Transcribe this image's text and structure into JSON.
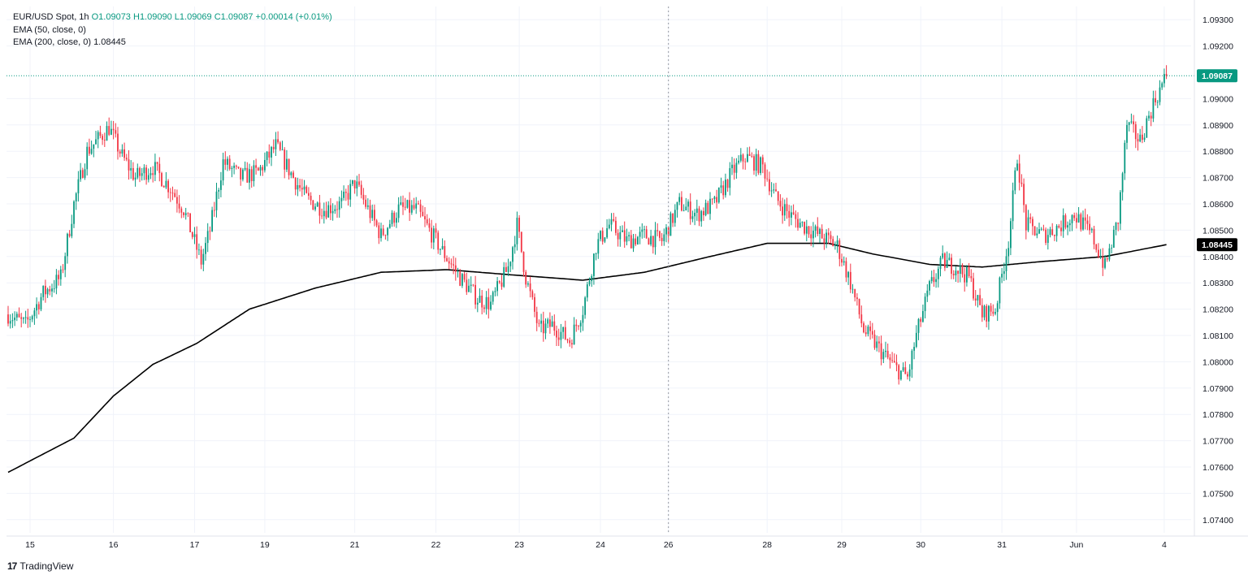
{
  "legend": {
    "symbol": "EUR/USD Spot, 1h",
    "o": "O1.09073",
    "h": "H1.09090",
    "l": "L1.09069",
    "c": "C1.09087",
    "chg": "+0.00014 (+0.01%)",
    "ema50": "EMA (50, close, 0)",
    "ema200": "EMA (200, close, 0)",
    "ema200_value": "1.08445"
  },
  "brand": {
    "logo_icon": "tradingview-logo-icon",
    "name": "TradingView"
  },
  "colors": {
    "up": "#089981",
    "down": "#f23645",
    "ema": "#000000",
    "grid": "#f0f3fa",
    "axis_text": "#131722"
  },
  "chart_data": {
    "type": "candlestick",
    "title": "",
    "ylim": [
      1.0735,
      1.0935
    ],
    "grid": true,
    "yticks": [
      "1.09300",
      "1.09200",
      "1.09000",
      "1.08900",
      "1.08800",
      "1.08700",
      "1.08600",
      "1.08500",
      "1.08400",
      "1.08300",
      "1.08200",
      "1.08100",
      "1.08000",
      "1.07900",
      "1.07800",
      "1.07700",
      "1.07600",
      "1.07500",
      "1.07400"
    ],
    "xticks": [
      "15",
      "16",
      "17",
      "19",
      "21",
      "22",
      "23",
      "24",
      "26",
      "28",
      "29",
      "30",
      "31",
      "Jun",
      "4"
    ],
    "last_price": 1.09087,
    "last_price_label": "1.09087",
    "ema200_label": "1.08445",
    "vertical_marker_at": "26",
    "price_path": [
      [
        0,
        1.0818
      ],
      [
        8,
        1.0814
      ],
      [
        16,
        1.0826
      ],
      [
        24,
        1.0832
      ],
      [
        30,
        1.086
      ],
      [
        36,
        1.088
      ],
      [
        46,
        1.0889
      ],
      [
        52,
        1.0878
      ],
      [
        58,
        1.087
      ],
      [
        66,
        1.0874
      ],
      [
        74,
        1.0866
      ],
      [
        80,
        1.0858
      ],
      [
        88,
        1.0838
      ],
      [
        92,
        1.085
      ],
      [
        98,
        1.0876
      ],
      [
        106,
        1.087
      ],
      [
        114,
        1.0872
      ],
      [
        122,
        1.0882
      ],
      [
        130,
        1.087
      ],
      [
        136,
        1.0862
      ],
      [
        144,
        1.0858
      ],
      [
        152,
        1.086
      ],
      [
        158,
        1.0868
      ],
      [
        164,
        1.0858
      ],
      [
        170,
        1.0848
      ],
      [
        178,
        1.0858
      ],
      [
        186,
        1.0858
      ],
      [
        192,
        1.085
      ],
      [
        198,
        1.0842
      ],
      [
        206,
        1.0832
      ],
      [
        214,
        1.0824
      ],
      [
        220,
        1.0822
      ],
      [
        228,
        1.0836
      ],
      [
        232,
        1.0852
      ],
      [
        236,
        1.0832
      ],
      [
        242,
        1.0812
      ],
      [
        248,
        1.0814
      ],
      [
        256,
        1.0808
      ],
      [
        262,
        1.082
      ],
      [
        268,
        1.0844
      ],
      [
        274,
        1.0852
      ],
      [
        282,
        1.0846
      ],
      [
        290,
        1.0848
      ],
      [
        298,
        1.0846
      ],
      [
        306,
        1.086
      ],
      [
        314,
        1.0856
      ],
      [
        322,
        1.086
      ],
      [
        330,
        1.0872
      ],
      [
        336,
        1.0878
      ],
      [
        344,
        1.0874
      ],
      [
        350,
        1.0862
      ],
      [
        356,
        1.0856
      ],
      [
        362,
        1.0852
      ],
      [
        370,
        1.0848
      ],
      [
        378,
        1.0844
      ],
      [
        384,
        1.083
      ],
      [
        390,
        1.0812
      ],
      [
        396,
        1.0806
      ],
      [
        404,
        1.0798
      ],
      [
        410,
        1.0794
      ],
      [
        414,
        1.081
      ],
      [
        420,
        1.0828
      ],
      [
        426,
        1.0838
      ],
      [
        432,
        1.0836
      ],
      [
        438,
        1.0832
      ],
      [
        444,
        1.0818
      ],
      [
        450,
        1.082
      ],
      [
        456,
        1.0846
      ],
      [
        460,
        1.0878
      ],
      [
        464,
        1.0852
      ],
      [
        472,
        1.0848
      ],
      [
        480,
        1.0852
      ],
      [
        486,
        1.0856
      ],
      [
        494,
        1.0848
      ],
      [
        500,
        1.0836
      ],
      [
        506,
        1.0854
      ],
      [
        510,
        1.089
      ],
      [
        516,
        1.0884
      ],
      [
        522,
        1.0898
      ],
      [
        528,
        1.09087
      ]
    ],
    "ema200_path": [
      [
        0,
        1.0758
      ],
      [
        30,
        1.0771
      ],
      [
        48,
        1.0787
      ],
      [
        66,
        1.0799
      ],
      [
        86,
        1.0807
      ],
      [
        110,
        1.082
      ],
      [
        140,
        1.0828
      ],
      [
        170,
        1.0834
      ],
      [
        200,
        1.0835
      ],
      [
        230,
        1.0833
      ],
      [
        262,
        1.0831
      ],
      [
        290,
        1.0834
      ],
      [
        320,
        1.084
      ],
      [
        346,
        1.0845
      ],
      [
        374,
        1.0845
      ],
      [
        394,
        1.0841
      ],
      [
        420,
        1.0837
      ],
      [
        444,
        1.0836
      ],
      [
        470,
        1.0838
      ],
      [
        500,
        1.084
      ],
      [
        528,
        1.08445
      ]
    ]
  }
}
